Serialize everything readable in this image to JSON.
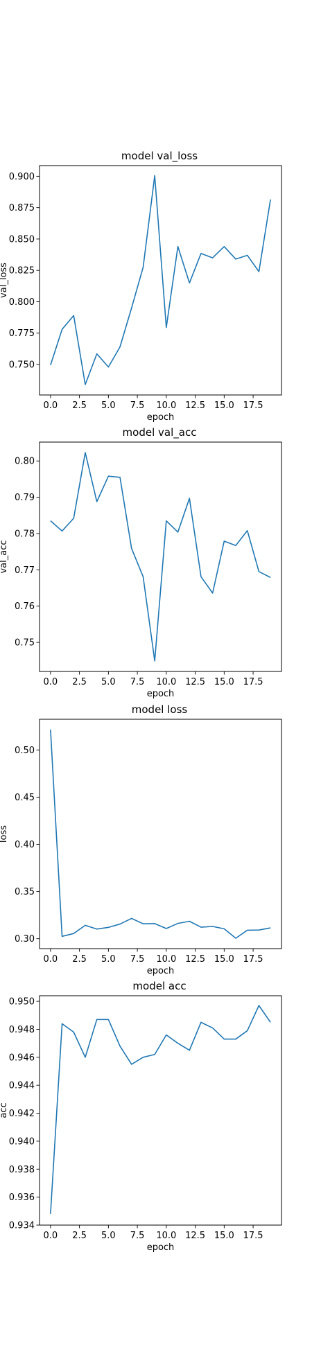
{
  "chart_data": [
    {
      "type": "line",
      "title": "model val_loss",
      "xlabel": "epoch",
      "ylabel": "val_loss",
      "x": [
        0,
        1,
        2,
        3,
        4,
        5,
        6,
        7,
        8,
        9,
        10,
        11,
        12,
        13,
        14,
        15,
        16,
        17,
        18,
        19
      ],
      "series": [
        {
          "values": [
            0.7495,
            0.778,
            0.789,
            0.734,
            0.7585,
            0.748,
            0.764,
            0.795,
            0.8275,
            0.9005,
            0.7795,
            0.844,
            0.815,
            0.8385,
            0.835,
            0.844,
            0.834,
            0.837,
            0.824,
            0.8815
          ]
        }
      ],
      "xticks": [
        0.0,
        2.5,
        5.0,
        7.5,
        10.0,
        12.5,
        15.0,
        17.5
      ],
      "xtick_labels": [
        "0.0",
        "2.5",
        "5.0",
        "7.5",
        "10.0",
        "12.5",
        "15.0",
        "17.5"
      ],
      "xlim": [
        -0.95,
        19.95
      ],
      "yticks": [
        0.75,
        0.775,
        0.8,
        0.825,
        0.85,
        0.875,
        0.9
      ],
      "ytick_labels": [
        "0.750",
        "0.775",
        "0.800",
        "0.825",
        "0.850",
        "0.875",
        "0.900"
      ],
      "ylim": [
        0.7257,
        0.9085
      ],
      "grid": false,
      "color": "#1f77b4"
    },
    {
      "type": "line",
      "title": "model val_acc",
      "xlabel": "epoch",
      "ylabel": "val_acc",
      "x": [
        0,
        1,
        2,
        3,
        4,
        5,
        6,
        7,
        8,
        9,
        10,
        11,
        12,
        13,
        14,
        15,
        16,
        17,
        18,
        19
      ],
      "series": [
        {
          "values": [
            0.7835,
            0.7807,
            0.7842,
            0.8023,
            0.7888,
            0.7958,
            0.7955,
            0.7759,
            0.7681,
            0.7449,
            0.7835,
            0.7804,
            0.7897,
            0.7681,
            0.7636,
            0.7779,
            0.7767,
            0.7808,
            0.7695,
            0.7679
          ]
        }
      ],
      "xticks": [
        0.0,
        2.5,
        5.0,
        7.5,
        10.0,
        12.5,
        15.0,
        17.5
      ],
      "xtick_labels": [
        "0.0",
        "2.5",
        "5.0",
        "7.5",
        "10.0",
        "12.5",
        "15.0",
        "17.5"
      ],
      "xlim": [
        -0.95,
        19.95
      ],
      "yticks": [
        0.75,
        0.76,
        0.77,
        0.78,
        0.79,
        0.8
      ],
      "ytick_labels": [
        "0.75",
        "0.76",
        "0.77",
        "0.78",
        "0.79",
        "0.80"
      ],
      "ylim": [
        0.742,
        0.8052
      ],
      "grid": false,
      "color": "#1f77b4"
    },
    {
      "type": "line",
      "title": "model loss",
      "xlabel": "epoch",
      "ylabel": "loss",
      "x": [
        0,
        1,
        2,
        3,
        4,
        5,
        6,
        7,
        8,
        9,
        10,
        11,
        12,
        13,
        14,
        15,
        16,
        17,
        18,
        19
      ],
      "series": [
        {
          "values": [
            0.5215,
            0.3025,
            0.3055,
            0.3142,
            0.3102,
            0.312,
            0.3155,
            0.3215,
            0.3158,
            0.316,
            0.3108,
            0.3162,
            0.3185,
            0.3122,
            0.313,
            0.3105,
            0.3005,
            0.309,
            0.3092,
            0.3115
          ]
        }
      ],
      "xticks": [
        0.0,
        2.5,
        5.0,
        7.5,
        10.0,
        12.5,
        15.0,
        17.5
      ],
      "xtick_labels": [
        "0.0",
        "2.5",
        "5.0",
        "7.5",
        "10.0",
        "12.5",
        "15.0",
        "17.5"
      ],
      "xlim": [
        -0.95,
        19.95
      ],
      "yticks": [
        0.3,
        0.35,
        0.4,
        0.45,
        0.5
      ],
      "ytick_labels": [
        "0.30",
        "0.35",
        "0.40",
        "0.45",
        "0.50"
      ],
      "ylim": [
        0.2895,
        0.5325
      ],
      "grid": false,
      "color": "#1f77b4"
    },
    {
      "type": "line",
      "title": "model acc",
      "xlabel": "epoch",
      "ylabel": "acc",
      "x": [
        0,
        1,
        2,
        3,
        4,
        5,
        6,
        7,
        8,
        9,
        10,
        11,
        12,
        13,
        14,
        15,
        16,
        17,
        18,
        19
      ],
      "series": [
        {
          "values": [
            0.9348,
            0.9484,
            0.9478,
            0.946,
            0.9487,
            0.9487,
            0.9468,
            0.9455,
            0.946,
            0.9462,
            0.9476,
            0.947,
            0.9465,
            0.9485,
            0.9481,
            0.9473,
            0.9473,
            0.9479,
            0.9497,
            0.9485
          ]
        }
      ],
      "xticks": [
        0.0,
        2.5,
        5.0,
        7.5,
        10.0,
        12.5,
        15.0,
        17.5
      ],
      "xtick_labels": [
        "0.0",
        "2.5",
        "5.0",
        "7.5",
        "10.0",
        "12.5",
        "15.0",
        "17.5"
      ],
      "xlim": [
        -0.95,
        19.95
      ],
      "yticks": [
        0.934,
        0.936,
        0.938,
        0.94,
        0.942,
        0.944,
        0.946,
        0.948,
        0.95
      ],
      "ytick_labels": [
        "0.934",
        "0.936",
        "0.938",
        "0.940",
        "0.942",
        "0.944",
        "0.946",
        "0.948",
        "0.950"
      ],
      "ylim": [
        0.934,
        0.9504
      ],
      "grid": false,
      "color": "#1f77b4"
    }
  ]
}
